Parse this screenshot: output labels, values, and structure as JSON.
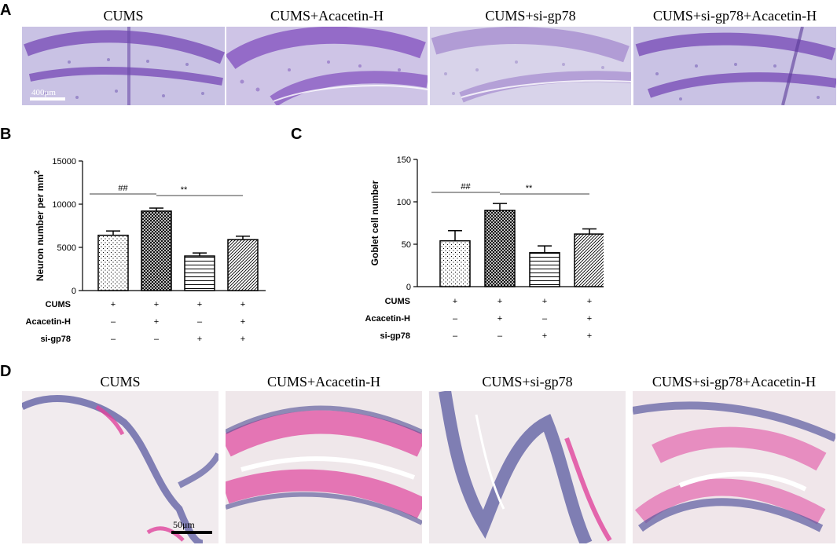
{
  "panels": {
    "A": {
      "letter": "A",
      "images": [
        {
          "title": "CUMS",
          "scale_bar": "400μm"
        },
        {
          "title": "CUMS+Acacetin-H"
        },
        {
          "title": "CUMS+si-gp78"
        },
        {
          "title": "CUMS+si-gp78+Acacetin-H"
        }
      ]
    },
    "B": {
      "letter": "B"
    },
    "C": {
      "letter": "C"
    },
    "D": {
      "letter": "D",
      "images": [
        {
          "title": "CUMS",
          "scale_bar": "50μm"
        },
        {
          "title": "CUMS+Acacetin-H"
        },
        {
          "title": "CUMS+si-gp78"
        },
        {
          "title": "CUMS+si-gp78+Acacetin-H"
        }
      ]
    }
  },
  "colors": {
    "he_stain": "#8a5cc4",
    "he_background": "#c9c2e4",
    "pas_stain": "#e0449c",
    "pas_nuclei": "#5a5aa0",
    "pas_background": "#f1ebee"
  },
  "chart_data": [
    {
      "type": "bar",
      "panel": "B",
      "ylabel": "Neuron number per mm",
      "ylabel_sup": "2",
      "ylim": [
        0,
        15000
      ],
      "yticks": [
        0,
        5000,
        10000,
        15000
      ],
      "ytick_labels": [
        "0",
        "5000",
        "10000",
        "15000"
      ],
      "values": [
        6400,
        9200,
        4000,
        5900
      ],
      "errors": [
        500,
        350,
        350,
        400
      ],
      "patterns": [
        "dots",
        "crosshatch",
        "horizontal",
        "diagonal"
      ],
      "conditions": {
        "row_labels": [
          "CUMS",
          "Acacetin-H",
          "si-gp78"
        ],
        "marks": [
          [
            "+",
            "+",
            "+",
            "+"
          ],
          [
            "–",
            "+",
            "–",
            "+"
          ],
          [
            "–",
            "–",
            "+",
            "+"
          ]
        ]
      },
      "significance": [
        {
          "label": "##",
          "from": 0,
          "to": 1
        },
        {
          "label": "**",
          "from": 1,
          "to": 3
        }
      ]
    },
    {
      "type": "bar",
      "panel": "C",
      "ylabel": "Goblet cell number",
      "ylim": [
        0,
        150
      ],
      "yticks": [
        0,
        50,
        100,
        150
      ],
      "ytick_labels": [
        "0",
        "50",
        "100",
        "150"
      ],
      "values": [
        54,
        90,
        40,
        62
      ],
      "errors": [
        12,
        8,
        8,
        6
      ],
      "patterns": [
        "dots",
        "crosshatch",
        "horizontal",
        "diagonal"
      ],
      "conditions": {
        "row_labels": [
          "CUMS",
          "Acacetin-H",
          "si-gp78"
        ],
        "marks": [
          [
            "+",
            "+",
            "+",
            "+"
          ],
          [
            "–",
            "+",
            "–",
            "+"
          ],
          [
            "–",
            "–",
            "+",
            "+"
          ]
        ]
      },
      "significance": [
        {
          "label": "##",
          "from": 0,
          "to": 1
        },
        {
          "label": "**",
          "from": 1,
          "to": 3
        }
      ]
    }
  ]
}
